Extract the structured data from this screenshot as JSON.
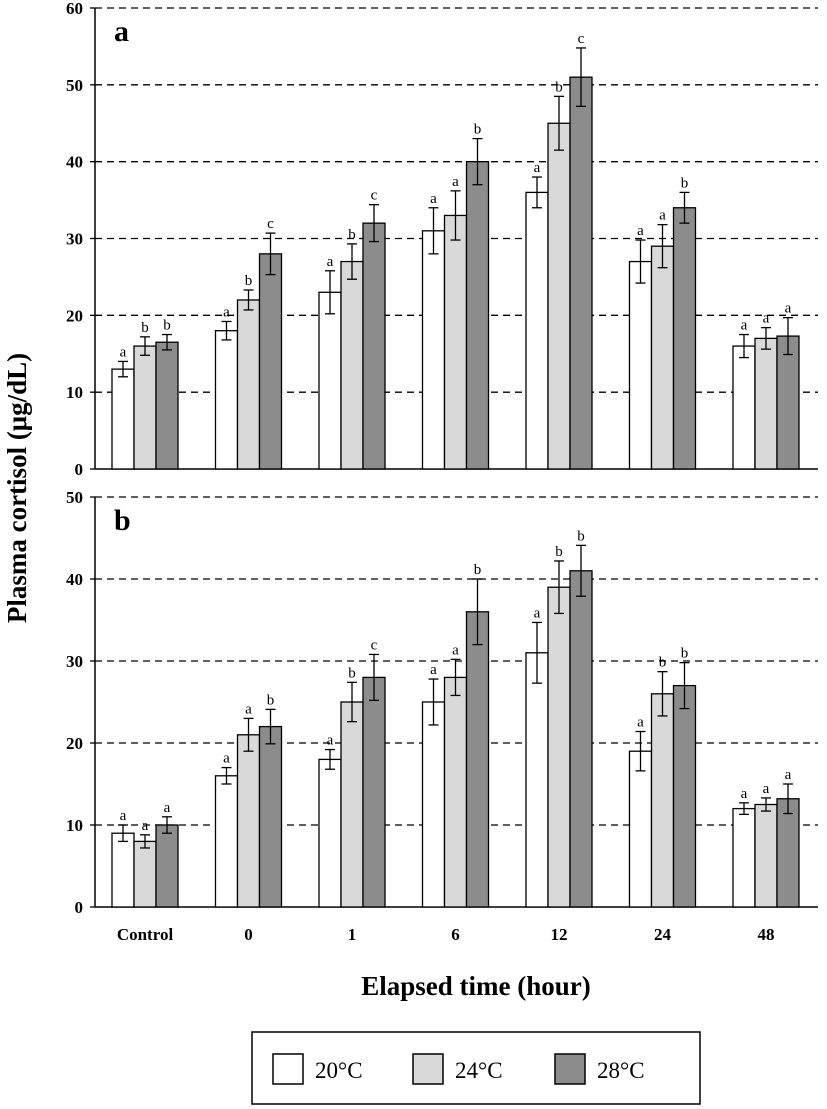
{
  "y_axis_label": "Plasma cortisol (μg/dL)",
  "x_axis_label": "Elapsed time (hour)",
  "legend": [
    {
      "label": "20°C",
      "color": "#ffffff"
    },
    {
      "label": "24°C",
      "color": "#d9d9d9"
    },
    {
      "label": "28°C",
      "color": "#8c8c8c"
    }
  ],
  "chart_data": [
    {
      "type": "bar",
      "panel_label": "a",
      "categories": [
        "Control",
        "0",
        "1",
        "6",
        "12",
        "24",
        "48"
      ],
      "ylim": [
        0,
        60
      ],
      "yticks": [
        0,
        10,
        20,
        30,
        40,
        50,
        60
      ],
      "grid": true,
      "series": [
        {
          "name": "20°C",
          "values": [
            13,
            18,
            23,
            31,
            36,
            27,
            16
          ],
          "errors": [
            1,
            1.2,
            2.8,
            3,
            2,
            2.8,
            1.5
          ],
          "letters": [
            "a",
            "a",
            "a",
            "a",
            "a",
            "a",
            "a"
          ]
        },
        {
          "name": "24°C",
          "values": [
            16,
            22,
            27,
            33,
            45,
            29,
            17
          ],
          "errors": [
            1.2,
            1.3,
            2.3,
            3.2,
            3.5,
            2.8,
            1.4
          ],
          "letters": [
            "b",
            "b",
            "b",
            "a",
            "b",
            "a",
            "a"
          ]
        },
        {
          "name": "28°C",
          "values": [
            16.5,
            28,
            32,
            40,
            51,
            34,
            17.3
          ],
          "errors": [
            1,
            2.7,
            2.4,
            3,
            3.8,
            2,
            2.4
          ],
          "letters": [
            "b",
            "c",
            "c",
            "b",
            "c",
            "b",
            "a"
          ]
        }
      ]
    },
    {
      "type": "bar",
      "panel_label": "b",
      "categories": [
        "Control",
        "0",
        "1",
        "6",
        "12",
        "24",
        "48"
      ],
      "ylim": [
        0,
        50
      ],
      "yticks": [
        0,
        10,
        20,
        30,
        40,
        50
      ],
      "grid": true,
      "series": [
        {
          "name": "20°C",
          "values": [
            9,
            16,
            18,
            25,
            31,
            19,
            12
          ],
          "errors": [
            1,
            1,
            1.2,
            2.8,
            3.7,
            2.4,
            0.7
          ],
          "letters": [
            "a",
            "a",
            "a",
            "a",
            "a",
            "a",
            "a"
          ]
        },
        {
          "name": "24°C",
          "values": [
            8,
            21,
            25,
            28,
            39,
            26,
            12.5
          ],
          "errors": [
            0.8,
            2,
            2.4,
            2.2,
            3.2,
            2.7,
            0.8
          ],
          "letters": [
            "a",
            "a",
            "b",
            "a",
            "b",
            "b",
            "a"
          ]
        },
        {
          "name": "28°C",
          "values": [
            10,
            22,
            28,
            36,
            41,
            27,
            13.2
          ],
          "errors": [
            1,
            2.1,
            2.8,
            4,
            3.1,
            2.8,
            1.8
          ],
          "letters": [
            "a",
            "b",
            "c",
            "b",
            "b",
            "b",
            "a"
          ]
        }
      ]
    }
  ]
}
